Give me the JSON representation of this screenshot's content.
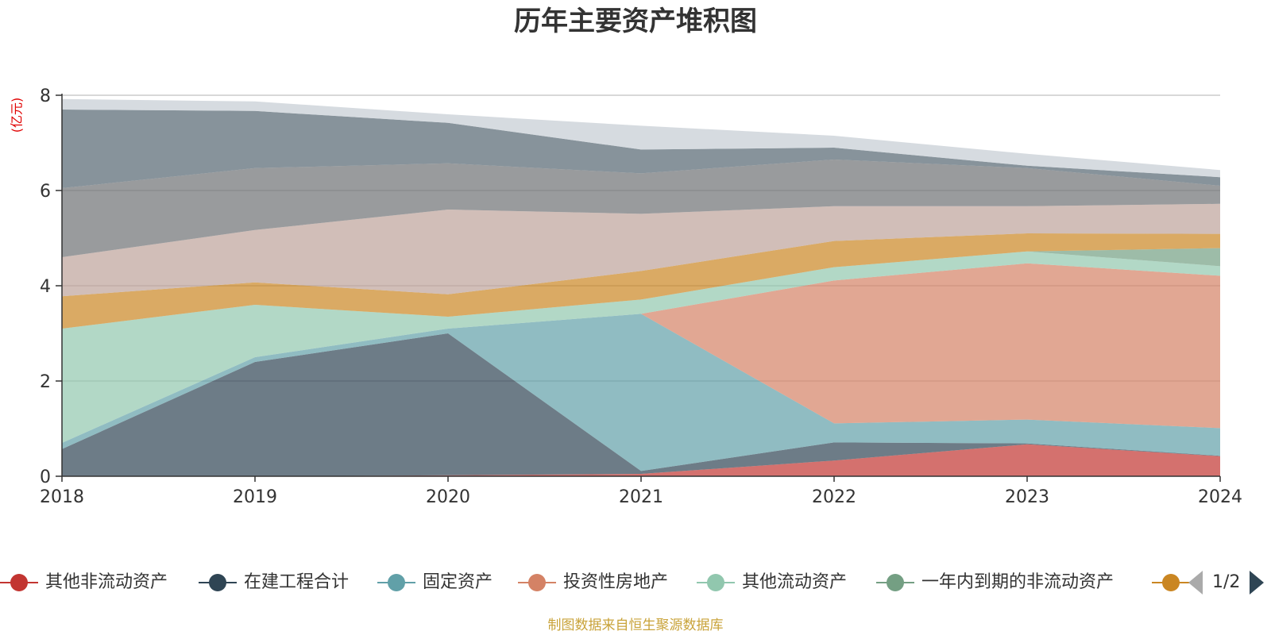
{
  "chart_data": {
    "type": "area",
    "stacked": true,
    "title": "历年主要资产堆积图",
    "y_unit_label": "亿元",
    "ylim": [
      0,
      8
    ],
    "y_ticks": [
      "0",
      "2",
      "4",
      "6",
      "8"
    ],
    "x": [
      "2018",
      "2019",
      "2020",
      "2021",
      "2022",
      "2023",
      "2024"
    ],
    "grid": true,
    "legend_position": "bottom",
    "series": [
      {
        "name": "其他非流动资产",
        "color": "#c23531",
        "values": [
          0,
          0,
          0.02,
          0.05,
          0.33,
          0.67,
          0.42
        ]
      },
      {
        "name": "在建工程合计",
        "color": "#2f4554",
        "values": [
          0.57,
          2.4,
          2.98,
          0.06,
          0.38,
          0.02,
          0.01
        ]
      },
      {
        "name": "固定资产",
        "color": "#61a0a8",
        "values": [
          0.13,
          0.1,
          0.1,
          3.3,
          0.4,
          0.5,
          0.58
        ]
      },
      {
        "name": "投资性房地产",
        "color": "#d48265",
        "values": [
          0,
          0,
          0,
          0,
          3.0,
          3.28,
          3.2
        ]
      },
      {
        "name": "其他流动资产",
        "color": "#91c7ae",
        "values": [
          2.4,
          1.1,
          0.25,
          0.3,
          0.28,
          0.25,
          0.2
        ]
      },
      {
        "name": "一年内到期的非流动资产",
        "color": "#749f83",
        "values": [
          0,
          0,
          0,
          0,
          0,
          0,
          0.38
        ]
      },
      {
        "name": "",
        "color": "#ca8622",
        "values": [
          0.68,
          0.47,
          0.47,
          0.6,
          0.55,
          0.38,
          0.3
        ]
      },
      {
        "name": "",
        "color": "#bda29a",
        "values": [
          0.82,
          1.1,
          1.78,
          1.2,
          0.73,
          0.57,
          0.63
        ]
      },
      {
        "name": "",
        "color": "#6e7074",
        "values": [
          1.45,
          1.3,
          0.97,
          0.85,
          0.98,
          0.8,
          0.38
        ]
      },
      {
        "name": "",
        "color": "#546570",
        "values": [
          1.65,
          1.2,
          0.85,
          0.5,
          0.25,
          0.05,
          0.18
        ]
      },
      {
        "name": "",
        "color": "#c4ccd3",
        "values": [
          0.22,
          0.2,
          0.18,
          0.5,
          0.25,
          0.25,
          0.15
        ]
      }
    ]
  },
  "legend_pager": {
    "text": "1/2"
  },
  "source_note": "制图数据来自恒生聚源数据库"
}
